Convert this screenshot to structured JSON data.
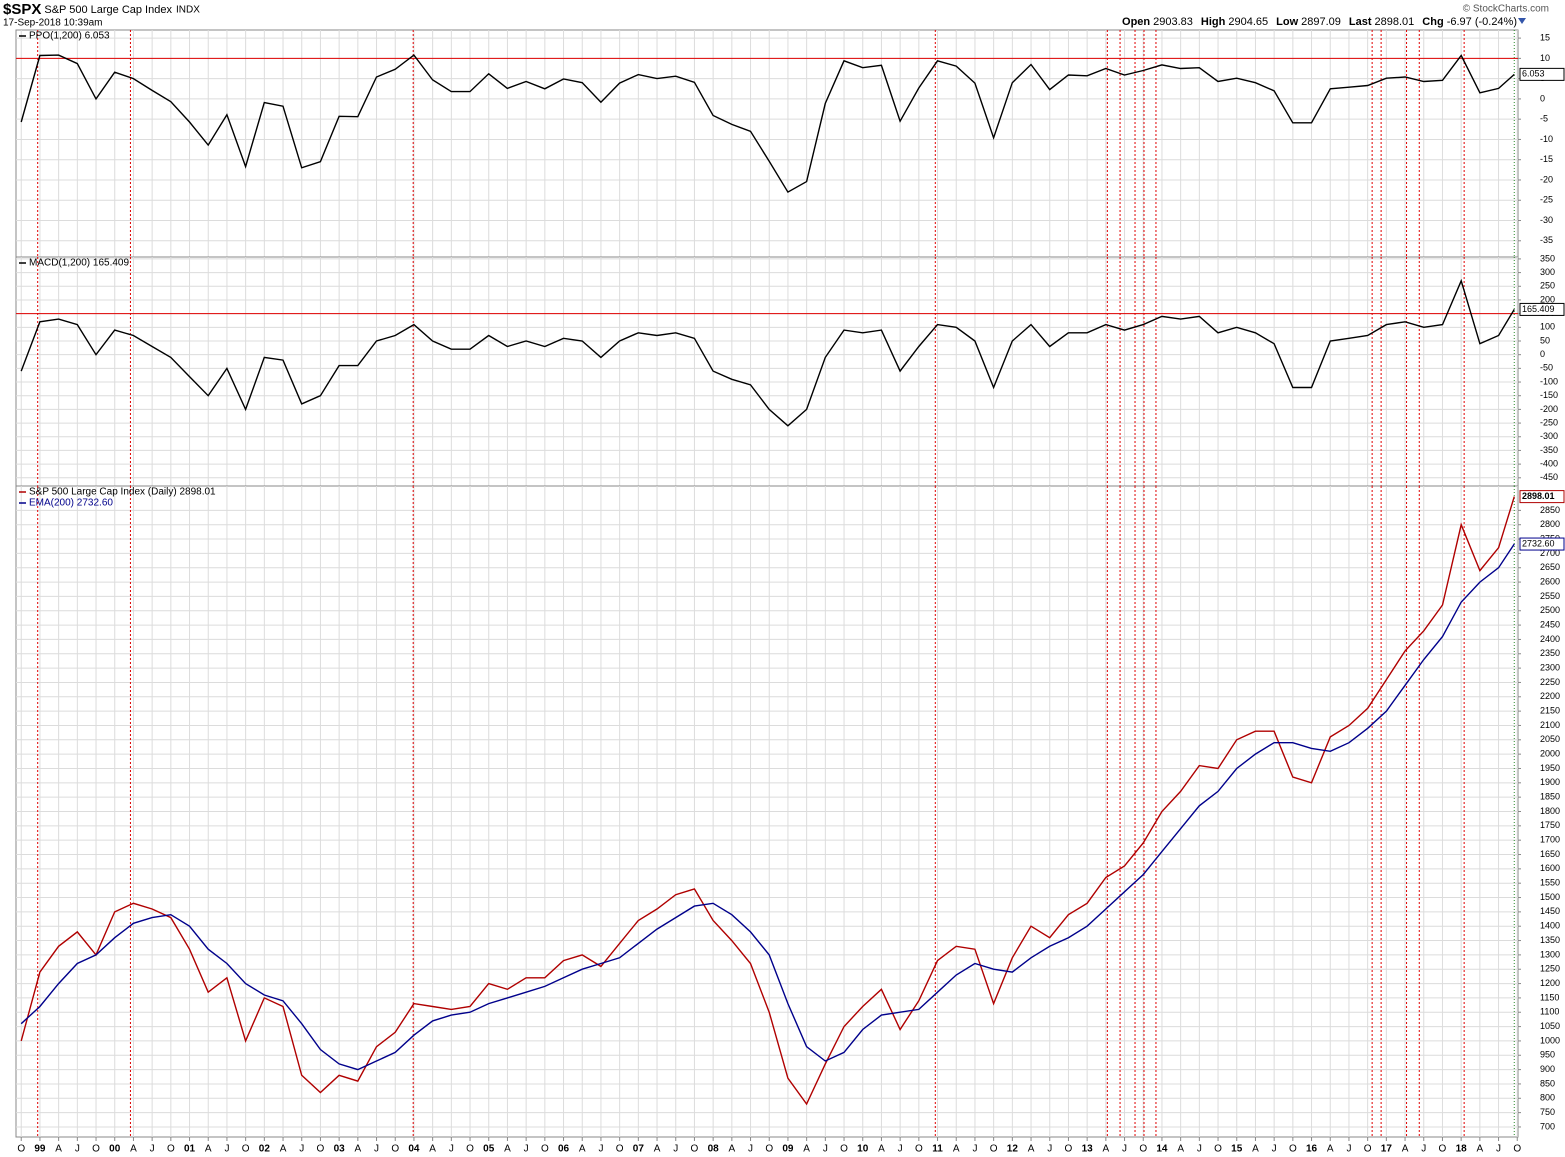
{
  "header": {
    "symbol": "$SPX",
    "name": "S&P 500 Large Cap Index",
    "exchange": "INDX",
    "timestamp": "17-Sep-2018 10:39am",
    "quote": [
      {
        "label": "Open",
        "value": "2903.83"
      },
      {
        "label": "High",
        "value": "2904.65"
      },
      {
        "label": "Low",
        "value": "2897.09"
      },
      {
        "label": "Last",
        "value": "2898.01"
      },
      {
        "label": "Chg",
        "value": "-6.97 (-0.24%)"
      }
    ],
    "credit": "© StockCharts.com"
  },
  "chart_data": {
    "type": "line",
    "grid": true,
    "x": [
      1998.75,
      1999,
      1999.25,
      1999.5,
      1999.75,
      2000,
      2000.25,
      2000.5,
      2000.75,
      2001,
      2001.25,
      2001.5,
      2001.75,
      2002,
      2002.25,
      2002.5,
      2002.75,
      2003,
      2003.25,
      2003.5,
      2003.75,
      2004,
      2004.25,
      2004.5,
      2004.75,
      2005,
      2005.25,
      2005.5,
      2005.75,
      2006,
      2006.25,
      2006.5,
      2006.75,
      2007,
      2007.25,
      2007.5,
      2007.75,
      2008,
      2008.25,
      2008.5,
      2008.75,
      2009,
      2009.25,
      2009.5,
      2009.75,
      2010,
      2010.25,
      2010.5,
      2010.75,
      2011,
      2011.25,
      2011.5,
      2011.75,
      2012,
      2012.25,
      2012.5,
      2012.75,
      2013,
      2013.25,
      2013.5,
      2013.75,
      2014,
      2014.25,
      2014.5,
      2014.75,
      2015,
      2015.25,
      2015.5,
      2015.75,
      2016,
      2016.25,
      2016.5,
      2016.75,
      2017,
      2017.25,
      2017.5,
      2017.75,
      2018,
      2018.25,
      2018.5,
      2018.71
    ],
    "xlim": [
      1998.68,
      2018.76
    ],
    "xticks": [
      {
        "value": 1998.75,
        "label": "O"
      },
      {
        "value": 1999,
        "label": "99"
      },
      {
        "value": 1999.25,
        "label": "A"
      },
      {
        "value": 1999.5,
        "label": "J"
      },
      {
        "value": 1999.75,
        "label": "O"
      },
      {
        "value": 2000,
        "label": "00"
      },
      {
        "value": 2000.25,
        "label": "A"
      },
      {
        "value": 2000.5,
        "label": "J"
      },
      {
        "value": 2000.75,
        "label": "O"
      },
      {
        "value": 2001,
        "label": "01"
      },
      {
        "value": 2001.25,
        "label": "A"
      },
      {
        "value": 2001.5,
        "label": "J"
      },
      {
        "value": 2001.75,
        "label": "O"
      },
      {
        "value": 2002,
        "label": "02"
      },
      {
        "value": 2002.25,
        "label": "A"
      },
      {
        "value": 2002.5,
        "label": "J"
      },
      {
        "value": 2002.75,
        "label": "O"
      },
      {
        "value": 2003,
        "label": "03"
      },
      {
        "value": 2003.25,
        "label": "A"
      },
      {
        "value": 2003.5,
        "label": "J"
      },
      {
        "value": 2003.75,
        "label": "O"
      },
      {
        "value": 2004,
        "label": "04"
      },
      {
        "value": 2004.25,
        "label": "A"
      },
      {
        "value": 2004.5,
        "label": "J"
      },
      {
        "value": 2004.75,
        "label": "O"
      },
      {
        "value": 2005,
        "label": "05"
      },
      {
        "value": 2005.25,
        "label": "A"
      },
      {
        "value": 2005.5,
        "label": "J"
      },
      {
        "value": 2005.75,
        "label": "O"
      },
      {
        "value": 2006,
        "label": "06"
      },
      {
        "value": 2006.25,
        "label": "A"
      },
      {
        "value": 2006.5,
        "label": "J"
      },
      {
        "value": 2006.75,
        "label": "O"
      },
      {
        "value": 2007,
        "label": "07"
      },
      {
        "value": 2007.25,
        "label": "A"
      },
      {
        "value": 2007.5,
        "label": "J"
      },
      {
        "value": 2007.75,
        "label": "O"
      },
      {
        "value": 2008,
        "label": "08"
      },
      {
        "value": 2008.25,
        "label": "A"
      },
      {
        "value": 2008.5,
        "label": "J"
      },
      {
        "value": 2008.75,
        "label": "O"
      },
      {
        "value": 2009,
        "label": "09"
      },
      {
        "value": 2009.25,
        "label": "A"
      },
      {
        "value": 2009.5,
        "label": "J"
      },
      {
        "value": 2009.75,
        "label": "O"
      },
      {
        "value": 2010,
        "label": "10"
      },
      {
        "value": 2010.25,
        "label": "A"
      },
      {
        "value": 2010.5,
        "label": "J"
      },
      {
        "value": 2010.75,
        "label": "O"
      },
      {
        "value": 2011,
        "label": "11"
      },
      {
        "value": 2011.25,
        "label": "A"
      },
      {
        "value": 2011.5,
        "label": "J"
      },
      {
        "value": 2011.75,
        "label": "O"
      },
      {
        "value": 2012,
        "label": "12"
      },
      {
        "value": 2012.25,
        "label": "A"
      },
      {
        "value": 2012.5,
        "label": "J"
      },
      {
        "value": 2012.75,
        "label": "O"
      },
      {
        "value": 2013,
        "label": "13"
      },
      {
        "value": 2013.25,
        "label": "A"
      },
      {
        "value": 2013.5,
        "label": "J"
      },
      {
        "value": 2013.75,
        "label": "O"
      },
      {
        "value": 2014,
        "label": "14"
      },
      {
        "value": 2014.25,
        "label": "A"
      },
      {
        "value": 2014.5,
        "label": "J"
      },
      {
        "value": 2014.75,
        "label": "O"
      },
      {
        "value": 2015,
        "label": "15"
      },
      {
        "value": 2015.25,
        "label": "A"
      },
      {
        "value": 2015.5,
        "label": "J"
      },
      {
        "value": 2015.75,
        "label": "O"
      },
      {
        "value": 2016,
        "label": "16"
      },
      {
        "value": 2016.25,
        "label": "A"
      },
      {
        "value": 2016.5,
        "label": "J"
      },
      {
        "value": 2016.75,
        "label": "O"
      },
      {
        "value": 2017,
        "label": "17"
      },
      {
        "value": 2017.25,
        "label": "A"
      },
      {
        "value": 2017.5,
        "label": "J"
      },
      {
        "value": 2017.75,
        "label": "O"
      },
      {
        "value": 2018,
        "label": "18"
      },
      {
        "value": 2018.25,
        "label": "A"
      },
      {
        "value": 2018.5,
        "label": "J"
      },
      {
        "value": 2018.75,
        "label": "O"
      }
    ],
    "signals": {
      "color": "#e00000",
      "x": [
        1998.97,
        2000.21,
        2003.99,
        2010.97,
        2013.27,
        2013.44,
        2013.64,
        2013.76,
        2013.92,
        2016.81,
        2016.93,
        2017.27,
        2017.44,
        2018.04
      ]
    },
    "panels": [
      {
        "ylim": [
          -39,
          17
        ],
        "yticks": [
          15,
          10,
          5,
          0,
          -5,
          -10,
          -15,
          -20,
          -25,
          -30,
          -35
        ],
        "hline": {
          "value": 10,
          "color": "#e00000"
        },
        "series": [
          {
            "name": "PPO(1,200) 6.053",
            "color": "#000000",
            "last_label": "6.053",
            "values": [
              -5.7,
              10.7,
              10.8,
              8.7,
              0,
              6.6,
              5.0,
              2.1,
              -0.7,
              -5.7,
              -11.4,
              -3.9,
              -16.7,
              -0.9,
              -1.8,
              -17.0,
              -15.5,
              -4.3,
              -4.4,
              5.4,
              7.3,
              10.8,
              4.7,
              1.8,
              1.8,
              6.2,
              2.6,
              4.3,
              2.5,
              4.9,
              4.0,
              -0.8,
              3.9,
              6.0,
              5.0,
              5.6,
              4.1,
              -4.1,
              -6.3,
              -8.0,
              -15.4,
              -23.0,
              -20.4,
              -1.1,
              9.4,
              7.7,
              8.3,
              -5.5,
              2.7,
              9.4,
              8.1,
              3.9,
              -9.6,
              4.0,
              8.5,
              2.3,
              5.9,
              5.7,
              7.5,
              5.9,
              7.0,
              8.4,
              7.5,
              7.7,
              4.3,
              5.1,
              4.0,
              2.0,
              -5.9,
              -5.9,
              2.5,
              2.9,
              3.3,
              5.1,
              5.4,
              4.3,
              4.6,
              10.7,
              1.5,
              2.6,
              6.053
            ]
          }
        ]
      },
      {
        "ylim": [
          -480,
          357
        ],
        "yticks": [
          350,
          300,
          250,
          200,
          150,
          100,
          50,
          0,
          -50,
          -100,
          -150,
          -200,
          -250,
          -300,
          -350,
          -400,
          -450
        ],
        "hline": {
          "value": 150,
          "color": "#e00000"
        },
        "series": [
          {
            "name": "MACD(1,200) 165.409",
            "color": "#000000",
            "last_label": "165.409",
            "values": [
              -60,
              120,
              130,
              110,
              0,
              90,
              70,
              30,
              -10,
              -80,
              -150,
              -50,
              -200,
              -10,
              -20,
              -180,
              -150,
              -40,
              -40,
              50,
              70,
              110,
              50,
              20,
              20,
              70,
              30,
              50,
              30,
              60,
              50,
              -10,
              50,
              80,
              70,
              80,
              60,
              -60,
              -90,
              -110,
              -200,
              -260,
              -200,
              -10,
              90,
              80,
              90,
              -60,
              30,
              110,
              100,
              50,
              -120,
              50,
              110,
              30,
              80,
              80,
              110,
              90,
              110,
              140,
              130,
              140,
              80,
              100,
              80,
              40,
              -120,
              -120,
              50,
              60,
              70,
              110,
              120,
              100,
              110,
              270,
              40,
              70,
              165.409
            ]
          }
        ]
      },
      {
        "ylim": [
          665,
          2935
        ],
        "yticks": [
          700,
          750,
          800,
          850,
          900,
          950,
          1000,
          1050,
          1100,
          1150,
          1200,
          1250,
          1300,
          1350,
          1400,
          1450,
          1500,
          1550,
          1600,
          1650,
          1700,
          1750,
          1800,
          1850,
          1900,
          1950,
          2000,
          2050,
          2100,
          2150,
          2200,
          2250,
          2300,
          2350,
          2400,
          2450,
          2500,
          2550,
          2600,
          2650,
          2700,
          2750,
          2800,
          2850
        ],
        "series": [
          {
            "name": "S&P 500 Large Cap Index (Daily) 2898.01",
            "color": "#b00000",
            "last_label": "2898.01",
            "values": [
              1000,
              1240,
              1330,
              1380,
              1300,
              1450,
              1480,
              1460,
              1430,
              1320,
              1170,
              1220,
              1000,
              1150,
              1120,
              880,
              820,
              880,
              860,
              980,
              1030,
              1130,
              1120,
              1110,
              1120,
              1200,
              1180,
              1220,
              1220,
              1280,
              1300,
              1260,
              1340,
              1420,
              1460,
              1510,
              1530,
              1420,
              1350,
              1270,
              1100,
              870,
              780,
              920,
              1050,
              1120,
              1180,
              1040,
              1140,
              1280,
              1330,
              1320,
              1130,
              1290,
              1400,
              1360,
              1440,
              1480,
              1570,
              1610,
              1690,
              1800,
              1870,
              1960,
              1950,
              2050,
              2080,
              2080,
              1920,
              1900,
              2060,
              2100,
              2160,
              2260,
              2360,
              2430,
              2520,
              2800,
              2640,
              2720,
              2898.01
            ]
          },
          {
            "name": "EMA(200) 2732.60",
            "color": "#00008b",
            "last_label": "2732.60",
            "values": [
              1060,
              1120,
              1200,
              1270,
              1300,
              1360,
              1410,
              1430,
              1440,
              1400,
              1320,
              1270,
              1200,
              1160,
              1140,
              1060,
              970,
              920,
              900,
              930,
              960,
              1020,
              1070,
              1090,
              1100,
              1130,
              1150,
              1170,
              1190,
              1220,
              1250,
              1270,
              1290,
              1340,
              1390,
              1430,
              1470,
              1480,
              1440,
              1380,
              1300,
              1130,
              980,
              930,
              960,
              1040,
              1090,
              1100,
              1110,
              1170,
              1230,
              1270,
              1250,
              1240,
              1290,
              1330,
              1360,
              1400,
              1460,
              1520,
              1580,
              1660,
              1740,
              1820,
              1870,
              1950,
              2000,
              2040,
              2040,
              2020,
              2010,
              2040,
              2090,
              2150,
              2240,
              2330,
              2410,
              2530,
              2600,
              2650,
              2732.6
            ]
          }
        ]
      }
    ]
  }
}
